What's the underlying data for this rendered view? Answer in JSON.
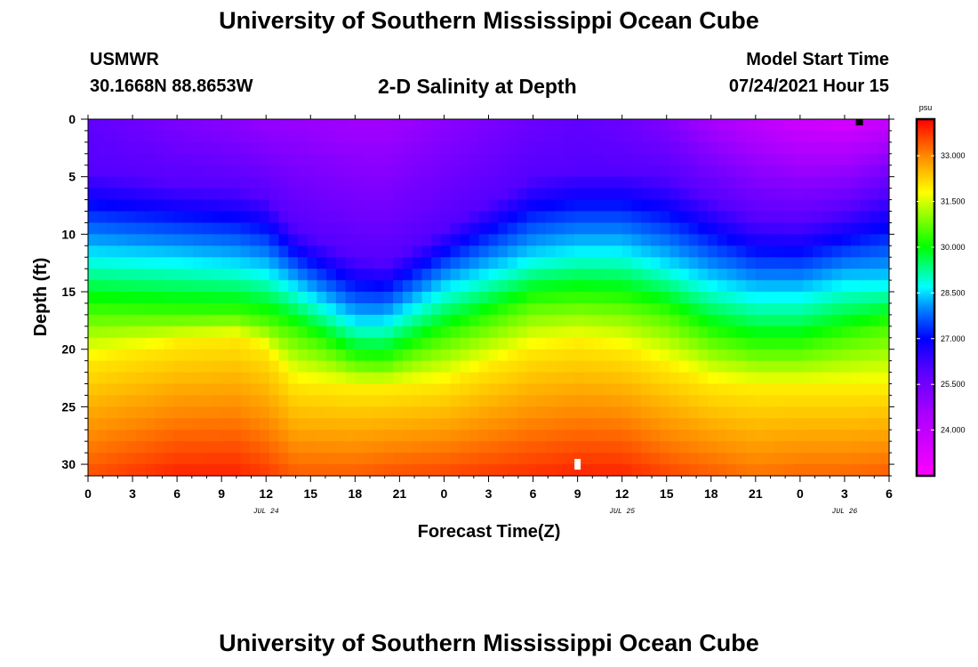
{
  "header": {
    "title": "University of Southern Mississippi Ocean Cube",
    "station": "USMWR",
    "coords": "30.1668N  88.8653W",
    "subtitle": "2-D Salinity at Depth",
    "start_label": "Model Start Time",
    "start_value": "07/24/2021 Hour 15"
  },
  "footer": {
    "title": "University of Southern Mississippi Ocean Cube"
  },
  "chart_data": {
    "type": "heatmap",
    "title": "2-D Salinity at Depth",
    "xlabel": "Forecast Time(Z)",
    "ylabel": "Depth (ft)",
    "x_range_hours": [
      0,
      54
    ],
    "ylim": [
      0,
      31
    ],
    "x_ticks": [
      "0",
      "3",
      "6",
      "9",
      "12",
      "15",
      "18",
      "21",
      "0",
      "3",
      "6",
      "9",
      "12",
      "15",
      "18",
      "21",
      "0",
      "3",
      "6"
    ],
    "y_ticks": [
      0,
      5,
      10,
      15,
      20,
      25,
      30
    ],
    "date_labels": [
      {
        "label": "JUL 24",
        "hour": 12
      },
      {
        "label": "JUL 25",
        "hour": 36
      },
      {
        "label": "JUL 26",
        "hour": 51
      }
    ],
    "isohaline_depth_profiles": {
      "description": "approximate depth (ft) of selected salinity contours versus forecast hour",
      "hours": [
        0,
        6,
        10,
        12,
        14,
        18,
        20,
        24,
        30,
        33,
        36,
        39,
        42,
        45,
        48,
        51,
        54
      ],
      "psu_26_0": [
        4.5,
        5.6,
        6.0,
        6.8,
        9.5,
        12.0,
        12.5,
        9.5,
        5.0,
        4.4,
        4.4,
        5.0,
        7.0,
        8.8,
        9.0,
        8.0,
        6.3
      ],
      "psu_28_5": [
        11.5,
        12.0,
        12.5,
        13.0,
        14.5,
        17.5,
        17.5,
        14.5,
        11.8,
        11.2,
        11.2,
        12.5,
        14.0,
        15.0,
        15.0,
        14.0,
        14.0
      ],
      "psu_30_5": [
        16.8,
        17.0,
        17.0,
        17.5,
        18.5,
        21.0,
        21.2,
        19.0,
        16.0,
        15.8,
        16.0,
        17.0,
        19.0,
        20.0,
        20.0,
        19.0,
        18.0
      ],
      "psu_32_0": [
        21.0,
        19.5,
        19.0,
        20.0,
        23.0,
        23.5,
        23.5,
        23.0,
        20.0,
        19.5,
        20.0,
        21.5,
        23.0,
        23.5,
        23.5,
        23.5,
        23.5
      ]
    },
    "surface_psu": [
      25.8,
      25.3,
      25.0,
      24.8,
      24.8,
      24.6,
      24.6,
      25.0,
      25.6,
      25.8,
      25.6,
      25.2,
      24.5,
      24.0,
      23.6,
      23.4,
      23.8
    ],
    "bottom_psu": [
      33.5,
      33.9,
      33.9,
      33.7,
      33.4,
      33.4,
      33.5,
      33.6,
      33.8,
      33.9,
      33.9,
      33.6,
      33.4,
      33.2,
      33.3,
      33.3,
      33.4
    ],
    "markers": [
      {
        "name": "surface-marker",
        "hour": 52.0,
        "depth": 0.2,
        "color": "#000000"
      },
      {
        "name": "bottom-marker",
        "hour": 33.0,
        "depth": 30.0,
        "color": "#ffffff"
      }
    ],
    "colorbar": {
      "unit": "psu",
      "range": [
        22.5,
        34.2
      ],
      "ticks": [
        "33.000",
        "31.500",
        "30.000",
        "28.500",
        "27.000",
        "25.500",
        "24.000"
      ],
      "tick_values": [
        33.0,
        31.5,
        30.0,
        28.5,
        27.0,
        25.5,
        24.0
      ],
      "stops": [
        {
          "psu": 22.5,
          "color": "#ff00ff"
        },
        {
          "psu": 24.5,
          "color": "#aa00ff"
        },
        {
          "psu": 26.0,
          "color": "#5500ff"
        },
        {
          "psu": 27.0,
          "color": "#0000ff"
        },
        {
          "psu": 28.0,
          "color": "#0088ff"
        },
        {
          "psu": 28.7,
          "color": "#00ffff"
        },
        {
          "psu": 30.0,
          "color": "#00ff00"
        },
        {
          "psu": 31.8,
          "color": "#ffff00"
        },
        {
          "psu": 33.0,
          "color": "#ff8800"
        },
        {
          "psu": 34.2,
          "color": "#ff0000"
        }
      ]
    }
  }
}
